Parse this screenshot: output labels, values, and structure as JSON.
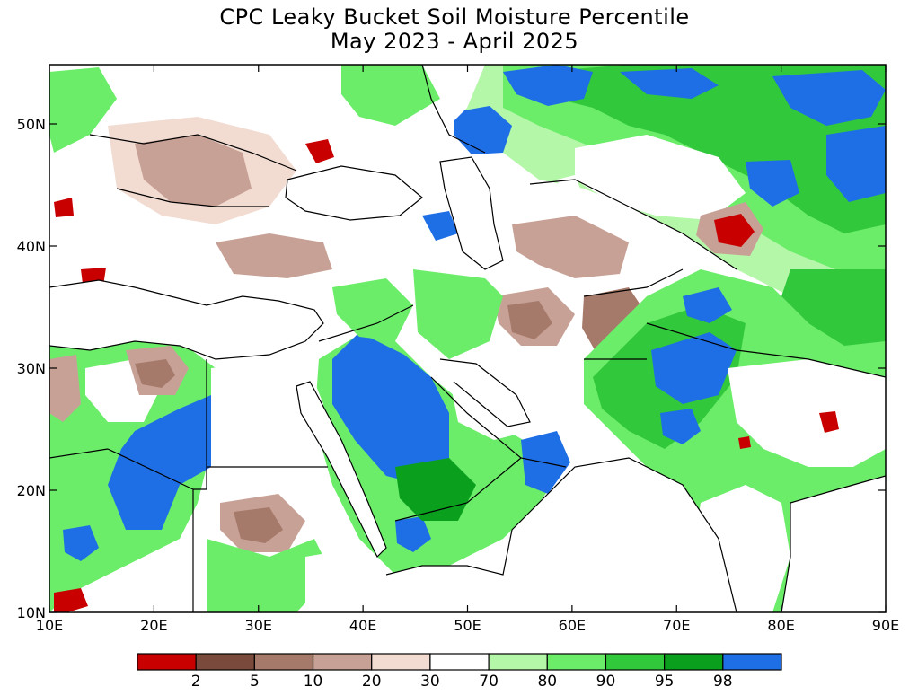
{
  "title": {
    "line1": "CPC Leaky Bucket Soil Moisture Percentile",
    "line2": "May 2023 - April 2025"
  },
  "axes": {
    "x_ticks": [
      "10E",
      "20E",
      "30E",
      "40E",
      "50E",
      "60E",
      "70E",
      "80E",
      "90E"
    ],
    "y_ticks": [
      "50N",
      "40N",
      "30N",
      "20N",
      "10N"
    ]
  },
  "legend": {
    "colors": [
      "#c80000",
      "#7a4a3c",
      "#a57a6a",
      "#c8a196",
      "#f2dcd2",
      "#ffffff",
      "#b4f7a8",
      "#6ced6a",
      "#32c83c",
      "#0aa01e",
      "#1e6ee6"
    ],
    "labels": [
      "2",
      "5",
      "10",
      "20",
      "30",
      "70",
      "80",
      "90",
      "95",
      "98"
    ]
  },
  "palette": {
    "white": "#ffffff",
    "pale_green": "#b4f7a8",
    "light_green": "#6ced6a",
    "green": "#32c83c",
    "dark_green": "#0aa01e",
    "blue": "#1e6ee6",
    "red": "#c80000",
    "dark_brown": "#7a4a3c",
    "brown": "#a57a6a",
    "tan": "#c8a196",
    "pale_pink": "#f2dcd2"
  }
}
